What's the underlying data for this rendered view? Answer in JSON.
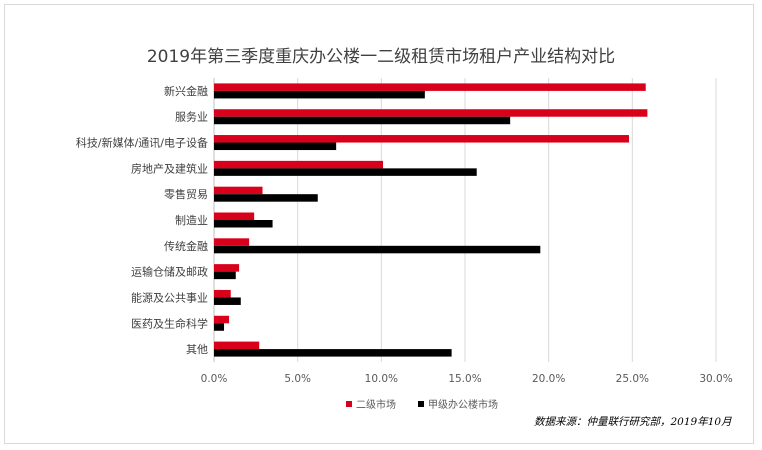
{
  "chart_data": {
    "type": "bar",
    "orientation": "horizontal",
    "title": "2019年第三季度重庆办公楼一二级租赁市场租户产业结构对比",
    "categories": [
      "新兴金融",
      "服务业",
      "科技/新媒体/通讯/电子设备",
      "房地产及建筑业",
      "零售贸易",
      "制造业",
      "传统金融",
      "运输仓储及邮政",
      "能源及公共事业",
      "医药及生命科学",
      "其他"
    ],
    "series": [
      {
        "name": "二级市场",
        "color": "#d9001b",
        "values": [
          25.8,
          25.9,
          24.8,
          10.1,
          2.9,
          2.4,
          2.1,
          1.5,
          1.0,
          0.9,
          2.7
        ]
      },
      {
        "name": "甲级办公楼市场",
        "color": "#000000",
        "values": [
          12.6,
          17.7,
          7.3,
          15.7,
          6.2,
          3.5,
          19.5,
          1.3,
          1.6,
          0.6,
          14.2
        ]
      }
    ],
    "xlim": [
      0,
      30
    ],
    "xticks": [
      "0.0%",
      "5.0%",
      "10.0%",
      "15.0%",
      "20.0%",
      "25.0%",
      "30.0%"
    ],
    "gridlines": "vertical",
    "legend_position": "bottom"
  },
  "source_note": "数据来源：仲量联行研究部，2019年10月"
}
